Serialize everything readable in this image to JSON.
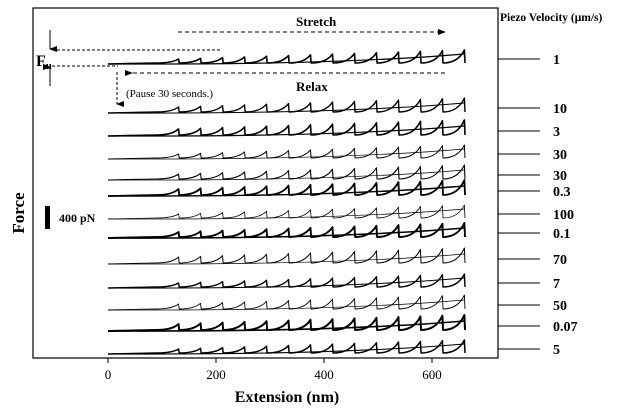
{
  "chart_data": {
    "type": "line",
    "title": "",
    "xlabel": "Extension (nm)",
    "ylabel": "Force",
    "xlim": [
      -130,
      670
    ],
    "x_ticks": [
      0,
      200,
      400,
      600
    ],
    "right_header_prefix": "Piezo Velocity (",
    "right_header_unit": "μm/s",
    "right_header_suffix": ")",
    "series": [
      {
        "velocity": "1"
      },
      {
        "velocity": "10"
      },
      {
        "velocity": "3"
      },
      {
        "velocity": "30"
      },
      {
        "velocity": "30"
      },
      {
        "velocity": "0.3"
      },
      {
        "velocity": "100"
      },
      {
        "velocity": "0.1"
      },
      {
        "velocity": "70"
      },
      {
        "velocity": "7"
      },
      {
        "velocity": "50"
      },
      {
        "velocity": "0.07"
      },
      {
        "velocity": "5"
      }
    ],
    "unfolding_peaks_per_trace": 14,
    "scale_bar_label": "400 pN",
    "scale_bar_force_pN": 400,
    "annotations": {
      "stretch": "Stretch",
      "relax": "Relax",
      "pause": "(Pause 30 seconds.)",
      "fu_main": "F",
      "fu_sub": "u"
    }
  }
}
